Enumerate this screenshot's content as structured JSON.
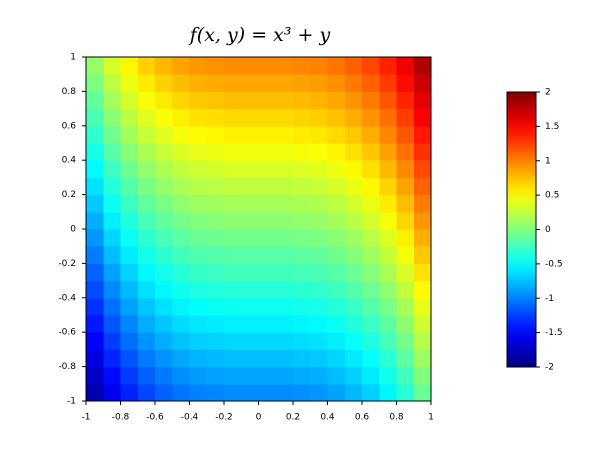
{
  "chart_data": {
    "type": "heatmap",
    "title": "f(x, y) = x³ + y",
    "colormap": "jet",
    "xlim": [
      -1,
      1
    ],
    "ylim": [
      -1,
      1
    ],
    "clim": [
      -2,
      2
    ],
    "xticks": [
      -1,
      -0.8,
      -0.6,
      -0.4,
      -0.2,
      0,
      0.2,
      0.4,
      0.6,
      0.8,
      1
    ],
    "yticks": [
      -1,
      -0.8,
      -0.6,
      -0.4,
      -0.2,
      0,
      0.2,
      0.4,
      0.6,
      0.8,
      1
    ],
    "cticks": [
      -2,
      -1.5,
      -1,
      -0.5,
      0,
      0.5,
      1,
      1.5,
      2
    ],
    "x": [
      -0.95,
      -0.85,
      -0.75,
      -0.65,
      -0.55,
      -0.45,
      -0.35,
      -0.25,
      -0.15,
      -0.05,
      0.05,
      0.15,
      0.25,
      0.35,
      0.45,
      0.55,
      0.65,
      0.75,
      0.85,
      0.95
    ],
    "y": [
      -0.95,
      -0.85,
      -0.75,
      -0.65,
      -0.55,
      -0.45,
      -0.35,
      -0.25,
      -0.15,
      -0.05,
      0.05,
      0.15,
      0.25,
      0.35,
      0.45,
      0.55,
      0.65,
      0.75,
      0.85,
      0.95
    ],
    "z": [
      [
        -1.81,
        -1.56,
        -1.37,
        -1.22,
        -1.12,
        -1.04,
        -0.99,
        -0.97,
        -0.95,
        -0.95,
        -0.95,
        -0.95,
        -0.93,
        -0.91,
        -0.86,
        -0.78,
        -0.68,
        -0.53,
        -0.34,
        -0.09
      ],
      [
        -1.71,
        -1.46,
        -1.27,
        -1.12,
        -1.02,
        -0.94,
        -0.89,
        -0.87,
        -0.85,
        -0.85,
        -0.85,
        -0.85,
        -0.83,
        -0.81,
        -0.76,
        -0.68,
        -0.58,
        -0.43,
        -0.24,
        0.01
      ],
      [
        -1.61,
        -1.36,
        -1.17,
        -1.02,
        -0.92,
        -0.84,
        -0.79,
        -0.77,
        -0.75,
        -0.75,
        -0.75,
        -0.75,
        -0.73,
        -0.71,
        -0.66,
        -0.58,
        -0.48,
        -0.33,
        -0.14,
        0.11
      ],
      [
        -1.51,
        -1.26,
        -1.07,
        -0.92,
        -0.82,
        -0.74,
        -0.69,
        -0.67,
        -0.65,
        -0.65,
        -0.65,
        -0.65,
        -0.63,
        -0.61,
        -0.56,
        -0.48,
        -0.38,
        -0.23,
        -0.04,
        0.21
      ],
      [
        -1.41,
        -1.16,
        -0.97,
        -0.82,
        -0.72,
        -0.64,
        -0.59,
        -0.57,
        -0.55,
        -0.55,
        -0.55,
        -0.55,
        -0.53,
        -0.51,
        -0.46,
        -0.38,
        -0.28,
        -0.13,
        0.06,
        0.31
      ],
      [
        -1.31,
        -1.06,
        -0.87,
        -0.72,
        -0.62,
        -0.54,
        -0.49,
        -0.47,
        -0.45,
        -0.45,
        -0.45,
        -0.45,
        -0.43,
        -0.41,
        -0.36,
        -0.28,
        -0.18,
        -0.03,
        0.16,
        0.41
      ],
      [
        -1.21,
        -0.96,
        -0.77,
        -0.62,
        -0.52,
        -0.44,
        -0.39,
        -0.37,
        -0.35,
        -0.35,
        -0.35,
        -0.35,
        -0.33,
        -0.31,
        -0.26,
        -0.18,
        -0.08,
        0.07,
        0.26,
        0.51
      ],
      [
        -1.11,
        -0.86,
        -0.67,
        -0.52,
        -0.42,
        -0.34,
        -0.29,
        -0.27,
        -0.25,
        -0.25,
        -0.25,
        -0.25,
        -0.23,
        -0.21,
        -0.16,
        -0.08,
        0.02,
        0.17,
        0.36,
        0.61
      ],
      [
        -1.01,
        -0.76,
        -0.57,
        -0.42,
        -0.32,
        -0.24,
        -0.19,
        -0.17,
        -0.15,
        -0.15,
        -0.15,
        -0.15,
        -0.13,
        -0.11,
        -0.06,
        0.02,
        0.12,
        0.27,
        0.46,
        0.71
      ],
      [
        -0.91,
        -0.66,
        -0.47,
        -0.32,
        -0.22,
        -0.14,
        -0.09,
        -0.07,
        -0.05,
        -0.05,
        -0.05,
        -0.05,
        -0.03,
        -0.01,
        0.04,
        0.12,
        0.22,
        0.37,
        0.56,
        0.81
      ],
      [
        -0.81,
        -0.56,
        -0.37,
        -0.22,
        -0.12,
        -0.04,
        0.01,
        0.03,
        0.05,
        0.05,
        0.05,
        0.05,
        0.07,
        0.09,
        0.14,
        0.22,
        0.32,
        0.47,
        0.66,
        0.91
      ],
      [
        -0.71,
        -0.46,
        -0.27,
        -0.12,
        -0.02,
        0.06,
        0.11,
        0.13,
        0.15,
        0.15,
        0.15,
        0.15,
        0.17,
        0.19,
        0.24,
        0.32,
        0.42,
        0.57,
        0.76,
        1.01
      ],
      [
        -0.61,
        -0.36,
        -0.17,
        -0.02,
        0.08,
        0.16,
        0.21,
        0.23,
        0.25,
        0.25,
        0.25,
        0.25,
        0.27,
        0.29,
        0.34,
        0.42,
        0.52,
        0.67,
        0.86,
        1.11
      ],
      [
        -0.51,
        -0.26,
        -0.07,
        0.08,
        0.18,
        0.26,
        0.31,
        0.33,
        0.35,
        0.35,
        0.35,
        0.35,
        0.37,
        0.39,
        0.44,
        0.52,
        0.62,
        0.77,
        0.96,
        1.21
      ],
      [
        -0.41,
        -0.16,
        0.03,
        0.18,
        0.28,
        0.36,
        0.41,
        0.43,
        0.45,
        0.45,
        0.45,
        0.45,
        0.47,
        0.49,
        0.54,
        0.62,
        0.72,
        0.87,
        1.06,
        1.31
      ],
      [
        -0.31,
        -0.06,
        0.13,
        0.28,
        0.38,
        0.46,
        0.51,
        0.53,
        0.55,
        0.55,
        0.55,
        0.55,
        0.57,
        0.59,
        0.64,
        0.72,
        0.82,
        0.97,
        1.16,
        1.41
      ],
      [
        -0.21,
        0.04,
        0.23,
        0.38,
        0.48,
        0.56,
        0.61,
        0.63,
        0.65,
        0.65,
        0.65,
        0.65,
        0.67,
        0.69,
        0.74,
        0.82,
        0.92,
        1.07,
        1.26,
        1.51
      ],
      [
        -0.11,
        0.14,
        0.33,
        0.48,
        0.58,
        0.66,
        0.71,
        0.73,
        0.75,
        0.75,
        0.75,
        0.75,
        0.77,
        0.79,
        0.84,
        0.92,
        1.02,
        1.17,
        1.36,
        1.61
      ],
      [
        -0.01,
        0.24,
        0.43,
        0.58,
        0.68,
        0.76,
        0.81,
        0.83,
        0.85,
        0.85,
        0.85,
        0.85,
        0.87,
        0.89,
        0.94,
        1.02,
        1.12,
        1.27,
        1.46,
        1.71
      ],
      [
        0.09,
        0.34,
        0.53,
        0.68,
        0.78,
        0.86,
        0.91,
        0.93,
        0.95,
        0.95,
        0.95,
        0.95,
        0.97,
        0.99,
        1.04,
        1.12,
        1.22,
        1.37,
        1.56,
        1.81
      ]
    ]
  }
}
